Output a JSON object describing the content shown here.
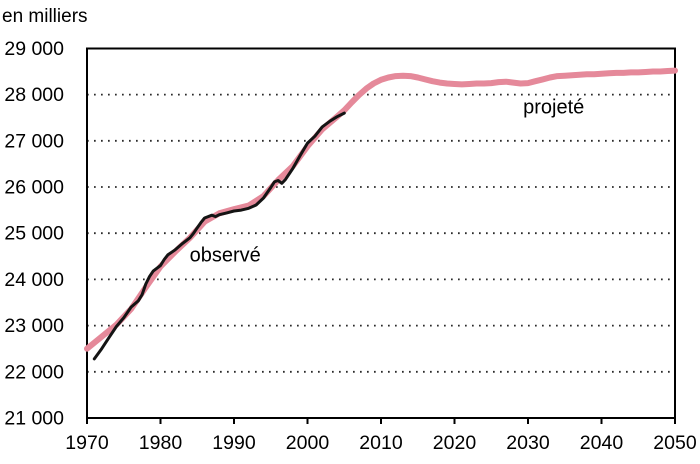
{
  "chart_data": {
    "type": "line",
    "title": "",
    "ylabel": "en milliers",
    "xlabel": "",
    "xlim": [
      1970,
      2050
    ],
    "ylim": [
      21000,
      29000
    ],
    "grid": "horizontal-dotted",
    "legend_position": "inline-annotations",
    "x_ticks": [
      1970,
      1980,
      1990,
      2000,
      2010,
      2020,
      2030,
      2040,
      2050
    ],
    "x_tick_labels": [
      "1970",
      "1980",
      "1990",
      "2000",
      "2010",
      "2020",
      "2030",
      "2040",
      "2050"
    ],
    "y_ticks": [
      21000,
      22000,
      23000,
      24000,
      25000,
      26000,
      27000,
      28000,
      29000
    ],
    "y_tick_labels": [
      "21 000",
      "22 000",
      "23 000",
      "24 000",
      "25 000",
      "26 000",
      "27 000",
      "28 000",
      "29 000"
    ],
    "colors": {
      "projected_pink": "#e5899a",
      "observed_black": "#141414",
      "grid_dots": "#2a2a2a",
      "frame": "#000000",
      "background": "#ffffff"
    },
    "annotations": [
      {
        "text": "observé",
        "x": 1988.8,
        "y": 24500
      },
      {
        "text": "projeté",
        "x": 2033.5,
        "y": 27710
      }
    ],
    "series": [
      {
        "name": "projeté",
        "id": "projected-line",
        "color": "#e5899a",
        "stroke_width": 6,
        "points": [
          [
            1970,
            22500
          ],
          [
            1972,
            22760
          ],
          [
            1974,
            23020
          ],
          [
            1976,
            23360
          ],
          [
            1978,
            23830
          ],
          [
            1980,
            24280
          ],
          [
            1982,
            24600
          ],
          [
            1984,
            24900
          ],
          [
            1986,
            25250
          ],
          [
            1988,
            25430
          ],
          [
            1990,
            25520
          ],
          [
            1992,
            25600
          ],
          [
            1994,
            25800
          ],
          [
            1996,
            26150
          ],
          [
            1998,
            26450
          ],
          [
            2000,
            26880
          ],
          [
            2002,
            27250
          ],
          [
            2004,
            27520
          ],
          [
            2005,
            27660
          ],
          [
            2006,
            27830
          ],
          [
            2007,
            27990
          ],
          [
            2008,
            28130
          ],
          [
            2009,
            28240
          ],
          [
            2010,
            28320
          ],
          [
            2011,
            28370
          ],
          [
            2012,
            28400
          ],
          [
            2013,
            28410
          ],
          [
            2014,
            28400
          ],
          [
            2015,
            28370
          ],
          [
            2016,
            28330
          ],
          [
            2017,
            28290
          ],
          [
            2018,
            28260
          ],
          [
            2019,
            28240
          ],
          [
            2020,
            28230
          ],
          [
            2021,
            28220
          ],
          [
            2022,
            28230
          ],
          [
            2023,
            28240
          ],
          [
            2024,
            28240
          ],
          [
            2025,
            28250
          ],
          [
            2026,
            28270
          ],
          [
            2027,
            28280
          ],
          [
            2028,
            28260
          ],
          [
            2029,
            28240
          ],
          [
            2030,
            28250
          ],
          [
            2031,
            28290
          ],
          [
            2032,
            28330
          ],
          [
            2033,
            28370
          ],
          [
            2034,
            28400
          ],
          [
            2035,
            28410
          ],
          [
            2036,
            28420
          ],
          [
            2037,
            28430
          ],
          [
            2038,
            28440
          ],
          [
            2039,
            28440
          ],
          [
            2040,
            28450
          ],
          [
            2041,
            28460
          ],
          [
            2042,
            28470
          ],
          [
            2043,
            28470
          ],
          [
            2044,
            28480
          ],
          [
            2045,
            28480
          ],
          [
            2046,
            28490
          ],
          [
            2047,
            28500
          ],
          [
            2048,
            28500
          ],
          [
            2049,
            28510
          ],
          [
            2050,
            28520
          ]
        ]
      },
      {
        "name": "observé",
        "id": "observed-line",
        "color": "#141414",
        "stroke_width": 3,
        "points": [
          [
            1971,
            22280
          ],
          [
            1972,
            22500
          ],
          [
            1973,
            22740
          ],
          [
            1974,
            22980
          ],
          [
            1975,
            23170
          ],
          [
            1976,
            23400
          ],
          [
            1976.5,
            23470
          ],
          [
            1977,
            23540
          ],
          [
            1977.5,
            23670
          ],
          [
            1978,
            23900
          ],
          [
            1978.5,
            24060
          ],
          [
            1979,
            24180
          ],
          [
            1979.5,
            24240
          ],
          [
            1980,
            24300
          ],
          [
            1980.5,
            24430
          ],
          [
            1981,
            24530
          ],
          [
            1982,
            24640
          ],
          [
            1983,
            24780
          ],
          [
            1984,
            24900
          ],
          [
            1984.5,
            25000
          ],
          [
            1985,
            25120
          ],
          [
            1985.5,
            25230
          ],
          [
            1986,
            25330
          ],
          [
            1987,
            25390
          ],
          [
            1987.5,
            25360
          ],
          [
            1988,
            25400
          ],
          [
            1989,
            25440
          ],
          [
            1990,
            25480
          ],
          [
            1991,
            25500
          ],
          [
            1992,
            25540
          ],
          [
            1993,
            25610
          ],
          [
            1994,
            25760
          ],
          [
            1995,
            25990
          ],
          [
            1995.5,
            26110
          ],
          [
            1996,
            26140
          ],
          [
            1996.5,
            26080
          ],
          [
            1997,
            26160
          ],
          [
            1998,
            26400
          ],
          [
            1999,
            26680
          ],
          [
            2000,
            26950
          ],
          [
            2001,
            27100
          ],
          [
            2002,
            27300
          ],
          [
            2003,
            27420
          ],
          [
            2004,
            27520
          ],
          [
            2005,
            27600
          ]
        ]
      }
    ]
  }
}
